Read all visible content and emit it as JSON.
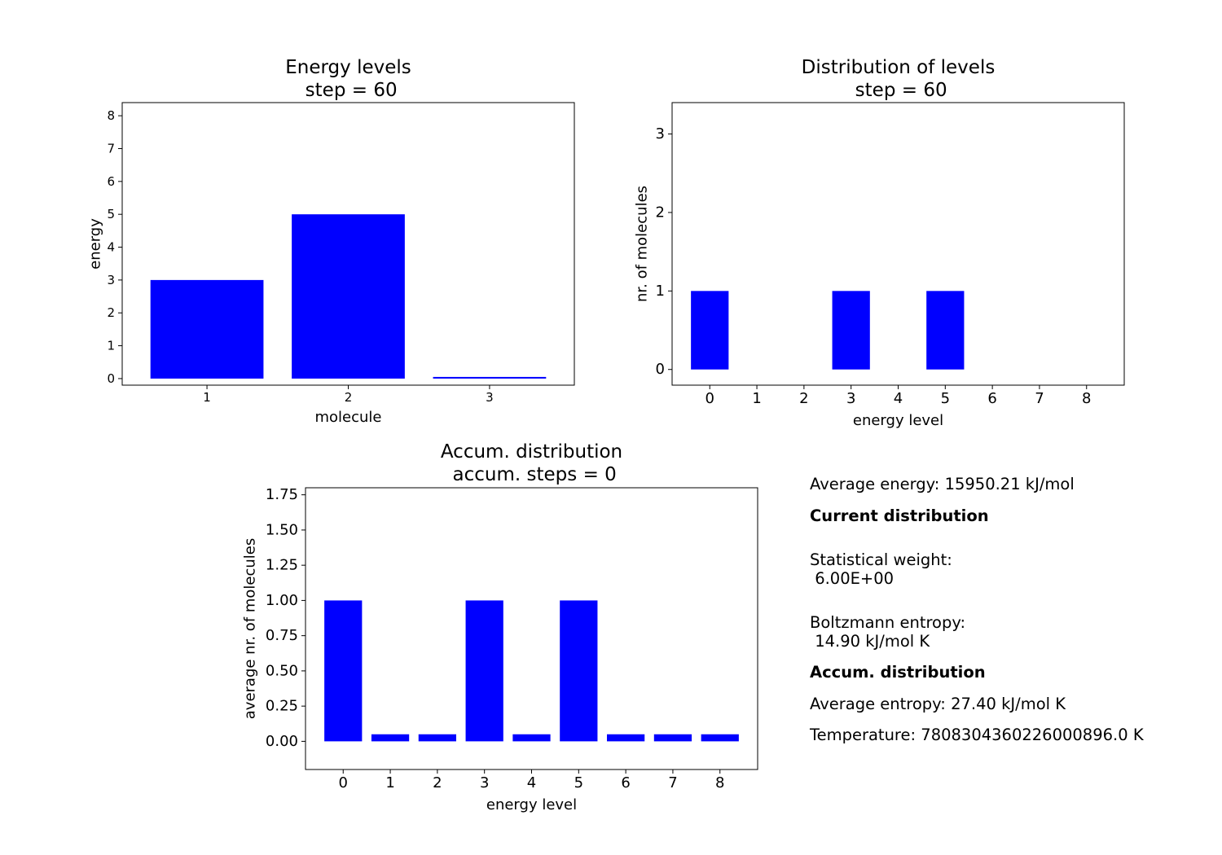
{
  "colors": {
    "bar": "#0000ff",
    "axes": "#000000",
    "background": "#ffffff"
  },
  "chart_data": [
    {
      "type": "bar",
      "title": "Energy levels\n step = 60",
      "xlabel": "molecule",
      "ylabel": "energy",
      "categories": [
        "1",
        "2",
        "3"
      ],
      "values": [
        3,
        5,
        0.05
      ],
      "ylim": [
        -0.2,
        8.4
      ],
      "yticks": [
        0,
        1,
        2,
        3,
        4,
        5,
        6,
        7,
        8
      ],
      "grid": false
    },
    {
      "type": "bar",
      "title": "Distribution of levels\n step = 60",
      "xlabel": "energy level",
      "ylabel": "nr. of molecules",
      "categories": [
        "0",
        "1",
        "2",
        "3",
        "4",
        "5",
        "6",
        "7",
        "8"
      ],
      "values": [
        1,
        0,
        0,
        1,
        0,
        1,
        0,
        0,
        0
      ],
      "ylim": [
        -0.2,
        3.4
      ],
      "yticks": [
        0,
        1,
        2,
        3
      ],
      "grid": false
    },
    {
      "type": "bar",
      "title": "Accum. distribution\n accum. steps = 0",
      "xlabel": "energy level",
      "ylabel": "average nr. of molecules",
      "categories": [
        "0",
        "1",
        "2",
        "3",
        "4",
        "5",
        "6",
        "7",
        "8"
      ],
      "values": [
        1,
        0.05,
        0.05,
        1,
        0.05,
        1,
        0.05,
        0.05,
        0.05
      ],
      "ylim": [
        -0.2,
        1.8
      ],
      "yticks": [
        "0.00",
        "0.25",
        "0.50",
        "0.75",
        "1.00",
        "1.25",
        "1.50",
        "1.75"
      ],
      "grid": false
    }
  ],
  "info": {
    "average_energy": "Average energy: 15950.21 kJ/mol",
    "current_header": "Current distribution",
    "statistical_weight": "Statistical weight:\n 6.00E+00",
    "boltzmann_entropy": "Boltzmann entropy:\n 14.90 kJ/mol K",
    "accum_header": "Accum. distribution",
    "average_entropy": "Average entropy: 27.40 kJ/mol K",
    "temperature": "Temperature: 7808304360226000896.0 K"
  }
}
